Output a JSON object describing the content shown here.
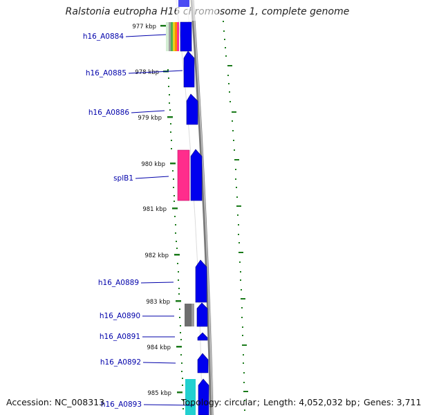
{
  "title": "Ralstonia eutropha H16 chromosome 1, complete genome",
  "accession_label": "Accession:",
  "accession": "NC_008313",
  "topology_label": "Topology:",
  "topology": "circular",
  "length_label": "Length:",
  "length": "4,052,032 bp",
  "genes_label": "Genes:",
  "genes": "3,711",
  "colors": {
    "gene_forward": "#0000ee",
    "gene_rna": "#ff2d8c",
    "gene_gray": "#6e6e6e",
    "gene_cyan": "#22d0d0",
    "backbone": "#8a8a8a",
    "tick": "#1a7a1a",
    "gene_label": "#0000aa",
    "stripe_colors": [
      "#a0a0a0",
      "#50b050",
      "#e8d020",
      "#ff8800",
      "#ff2d8c"
    ]
  },
  "scale_ticks": [
    "977 kbp",
    "978 kbp",
    "979 kbp",
    "980 kbp",
    "981 kbp",
    "982 kbp",
    "983 kbp",
    "984 kbp",
    "985 kbp"
  ],
  "gene_labels": [
    "h16_A0884",
    "h16_A0885",
    "h16_A0886",
    "splB1",
    "h16_A0889",
    "h16_A0890",
    "h16_A0891",
    "h16_A0892",
    "h16_A0893"
  ]
}
